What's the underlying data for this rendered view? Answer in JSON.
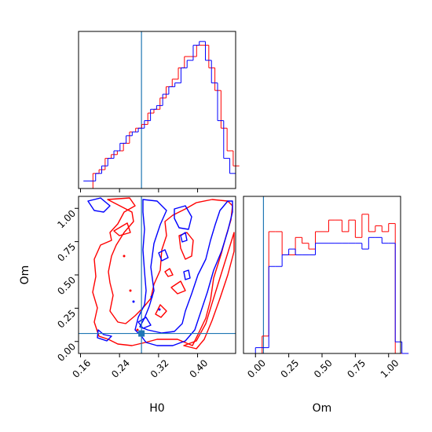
{
  "colors": {
    "series_a": "#ff0000",
    "series_b": "#0000ff",
    "truth": "#1f77b4"
  },
  "chart_data": [
    {
      "type": "histogram",
      "panel": "H0 marginal",
      "xlim": [
        0.156,
        0.478
      ],
      "x_ticks": [
        0.16,
        0.24,
        0.32,
        0.4
      ],
      "tick_labels_shown": false,
      "truth": 0.285,
      "bin_width": 0.0125,
      "series": [
        {
          "color": "red",
          "x0": 0.173,
          "counts": [
            0,
            2,
            2.5,
            4,
            4.5,
            5,
            6,
            7.5,
            8,
            8.5,
            10,
            10.5,
            12,
            13.5,
            14.5,
            16,
            17.5,
            17.5,
            19,
            19,
            16,
            13,
            8,
            5,
            3
          ]
        },
        {
          "color": "blue",
          "x0": 0.166,
          "counts": [
            1,
            1,
            2,
            3,
            4,
            5,
            6,
            7,
            7.5,
            8,
            9,
            10.5,
            11,
            12.5,
            13.5,
            14,
            16,
            17,
            19,
            19.5,
            17,
            14,
            9,
            4,
            2
          ]
        }
      ]
    },
    {
      "type": "contour",
      "panel": "H0 vs Om",
      "xlabel": "H0",
      "ylabel": "Om",
      "xlim": [
        0.156,
        0.478
      ],
      "ylim": [
        -0.09,
        1.09
      ],
      "x_ticks": [
        "0.16",
        "0.24",
        "0.32",
        "0.40"
      ],
      "y_ticks": [
        "0.00",
        "0.25",
        "0.50",
        "0.75",
        "1.00"
      ],
      "truth": {
        "H0": 0.285,
        "Om": 0.06
      },
      "series": [
        {
          "color": "red",
          "levels": 2
        },
        {
          "color": "blue",
          "levels": 2
        }
      ]
    },
    {
      "type": "histogram",
      "panel": "Om marginal",
      "xlabel": "Om",
      "xlim": [
        -0.09,
        1.09
      ],
      "x_ticks": [
        "0.00",
        "0.25",
        "0.50",
        "0.75",
        "1.00"
      ],
      "truth": 0.06,
      "bin_width": 0.05,
      "series": [
        {
          "color": "red",
          "x0": -0.05,
          "counts": [
            0,
            0,
            1.5,
            10.5,
            10.5,
            8.5,
            8.5,
            10,
            9.5,
            9,
            10.5,
            10.5,
            11.5,
            11.5,
            10.5,
            11.5,
            10,
            12,
            10.5,
            11,
            10.5,
            11.2,
            0,
            0
          ]
        },
        {
          "color": "blue",
          "x0": -0.05,
          "counts": [
            0,
            0.5,
            0.5,
            7.5,
            7.5,
            8.5,
            9,
            8.5,
            8.5,
            8.5,
            9.5,
            9.5,
            9.5,
            9.5,
            9.5,
            9.5,
            9.5,
            9,
            10,
            10,
            9.5,
            9.5,
            1,
            0
          ]
        }
      ]
    }
  ]
}
